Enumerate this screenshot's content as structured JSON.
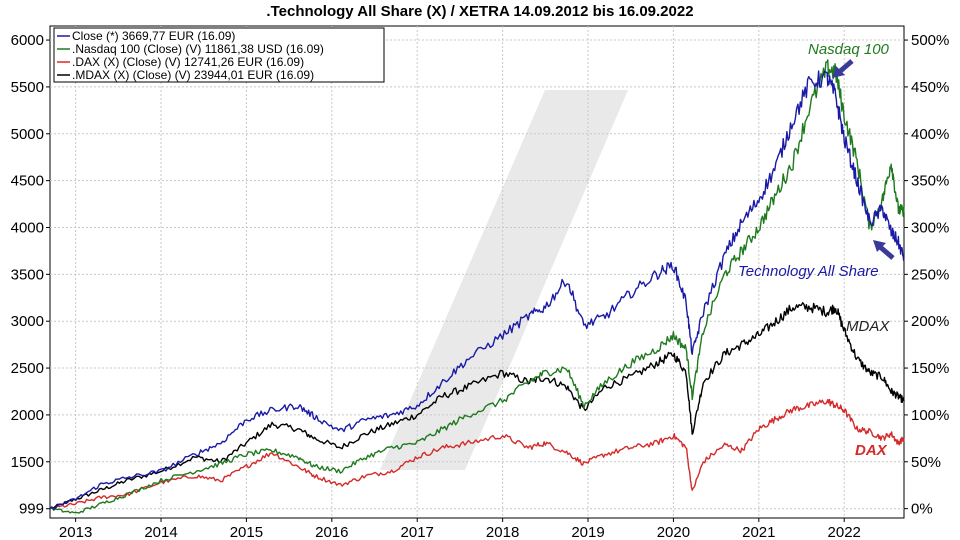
{
  "chart_data": {
    "type": "line",
    "title": ".Technology All Share (X) / XETRA 14.09.2012 bis 16.09.2022",
    "x_range": [
      2012.7,
      2022.7
    ],
    "ylim_left": [
      900,
      6150
    ],
    "ylim_right_pct": [
      -10,
      515
    ],
    "left_ticks": [
      999,
      1500,
      2000,
      2500,
      3000,
      3500,
      4000,
      4500,
      5000,
      5500,
      6000
    ],
    "right_ticks": [
      "0%",
      "50%",
      "100%",
      "150%",
      "200%",
      "250%",
      "300%",
      "350%",
      "400%",
      "450%",
      "500%"
    ],
    "right_tick_values": [
      0,
      50,
      100,
      150,
      200,
      250,
      300,
      350,
      400,
      450,
      500
    ],
    "x_ticks": [
      "2013",
      "2014",
      "2015",
      "2016",
      "2017",
      "2018",
      "2019",
      "2020",
      "2021",
      "2022"
    ],
    "x_tick_values": [
      2013,
      2014,
      2015,
      2016,
      2017,
      2018,
      2019,
      2020,
      2021,
      2022
    ],
    "grid": true,
    "legend_position": "top-left",
    "series": [
      {
        "name": "Close (*) 3669,77 EUR (16.09)",
        "label": "Technology All Share",
        "color": "#1a1aa6",
        "x": [
          2012.7,
          2013.0,
          2013.3,
          2013.6,
          2014.0,
          2014.4,
          2014.7,
          2015.0,
          2015.3,
          2015.6,
          2015.8,
          2016.1,
          2016.4,
          2016.7,
          2017.0,
          2017.3,
          2017.6,
          2018.0,
          2018.3,
          2018.5,
          2018.75,
          2018.95,
          2019.2,
          2019.5,
          2019.8,
          2020.0,
          2020.15,
          2020.22,
          2020.35,
          2020.6,
          2020.8,
          2021.0,
          2021.2,
          2021.4,
          2021.6,
          2021.8,
          2021.9,
          2022.0,
          2022.15,
          2022.3,
          2022.45,
          2022.55,
          2022.63,
          2022.7
        ],
        "values": [
          999,
          1100,
          1260,
          1330,
          1400,
          1580,
          1700,
          1950,
          2050,
          2100,
          1980,
          1830,
          1950,
          2000,
          2100,
          2350,
          2600,
          2850,
          3050,
          3150,
          3450,
          2950,
          3050,
          3300,
          3500,
          3600,
          3200,
          2650,
          3100,
          3700,
          4050,
          4300,
          4650,
          5150,
          5550,
          5600,
          5400,
          4950,
          4500,
          4050,
          4200,
          3950,
          3850,
          3670
        ]
      },
      {
        "name": ".Nasdaq 100 (Close) (V) 11861,38 USD (16.09)",
        "label": "Nasdaq 100",
        "color": "#1f7a1f",
        "x": [
          2012.7,
          2013.0,
          2013.3,
          2013.6,
          2014.0,
          2014.4,
          2014.7,
          2015.0,
          2015.3,
          2015.6,
          2015.8,
          2016.1,
          2016.4,
          2016.7,
          2017.0,
          2017.3,
          2017.6,
          2018.0,
          2018.3,
          2018.5,
          2018.75,
          2018.95,
          2019.2,
          2019.5,
          2019.8,
          2020.0,
          2020.15,
          2020.22,
          2020.35,
          2020.6,
          2020.8,
          2021.0,
          2021.2,
          2021.4,
          2021.6,
          2021.8,
          2021.9,
          2022.0,
          2022.15,
          2022.3,
          2022.45,
          2022.55,
          2022.63,
          2022.7
        ],
        "values": [
          999,
          950,
          1050,
          1150,
          1300,
          1400,
          1480,
          1580,
          1620,
          1550,
          1450,
          1400,
          1550,
          1650,
          1700,
          1850,
          2000,
          2150,
          2350,
          2450,
          2500,
          2100,
          2350,
          2550,
          2700,
          2850,
          2700,
          2200,
          2900,
          3500,
          3750,
          4000,
          4350,
          4700,
          5300,
          5700,
          5650,
          5200,
          4700,
          4000,
          4300,
          4700,
          4200,
          4150
        ]
      },
      {
        "name": ".DAX (X) (Close) (V) 12741,26 EUR (16.09)",
        "label": "DAX",
        "color": "#d42a2a",
        "x": [
          2012.7,
          2013.0,
          2013.3,
          2013.6,
          2014.0,
          2014.4,
          2014.7,
          2015.0,
          2015.3,
          2015.6,
          2015.8,
          2016.1,
          2016.4,
          2016.7,
          2017.0,
          2017.3,
          2017.6,
          2018.0,
          2018.3,
          2018.5,
          2018.75,
          2018.95,
          2019.2,
          2019.5,
          2019.8,
          2020.0,
          2020.15,
          2020.22,
          2020.35,
          2020.6,
          2020.8,
          2021.0,
          2021.2,
          2021.4,
          2021.6,
          2021.8,
          2021.9,
          2022.0,
          2022.15,
          2022.3,
          2022.45,
          2022.55,
          2022.63,
          2022.7
        ],
        "values": [
          999,
          1050,
          1120,
          1150,
          1280,
          1350,
          1300,
          1450,
          1600,
          1450,
          1350,
          1250,
          1350,
          1400,
          1550,
          1650,
          1700,
          1780,
          1650,
          1700,
          1600,
          1480,
          1580,
          1650,
          1700,
          1780,
          1650,
          1180,
          1500,
          1680,
          1620,
          1850,
          1960,
          2060,
          2100,
          2150,
          2100,
          2050,
          1850,
          1820,
          1750,
          1800,
          1700,
          1750
        ]
      },
      {
        "name": ".MDAX (X) (Close) (V) 23944,01 EUR (16.09)",
        "label": "MDAX",
        "color": "#000000",
        "x": [
          2012.7,
          2013.0,
          2013.3,
          2013.6,
          2014.0,
          2014.4,
          2014.7,
          2015.0,
          2015.3,
          2015.6,
          2015.8,
          2016.1,
          2016.4,
          2016.7,
          2017.0,
          2017.3,
          2017.6,
          2018.0,
          2018.3,
          2018.5,
          2018.75,
          2018.95,
          2019.2,
          2019.5,
          2019.8,
          2020.0,
          2020.15,
          2020.22,
          2020.35,
          2020.6,
          2020.8,
          2021.0,
          2021.2,
          2021.4,
          2021.6,
          2021.8,
          2021.9,
          2022.0,
          2022.15,
          2022.3,
          2022.45,
          2022.55,
          2022.63,
          2022.7
        ],
        "values": [
          999,
          1100,
          1200,
          1300,
          1400,
          1550,
          1500,
          1700,
          1900,
          1850,
          1750,
          1650,
          1800,
          1900,
          2000,
          2200,
          2300,
          2450,
          2350,
          2400,
          2300,
          2050,
          2300,
          2400,
          2550,
          2650,
          2450,
          1800,
          2350,
          2650,
          2750,
          2850,
          3000,
          3150,
          3150,
          3100,
          3150,
          2900,
          2600,
          2450,
          2400,
          2250,
          2200,
          2150
        ]
      }
    ],
    "annotations": [
      {
        "text": "Nasdaq 100",
        "color": "#1f7a1f"
      },
      {
        "text": "Technology All Share",
        "color": "#1a1aa6"
      },
      {
        "text": "MDAX",
        "color": "#222222"
      },
      {
        "text": "DAX",
        "color": "#d42a2a"
      }
    ]
  }
}
